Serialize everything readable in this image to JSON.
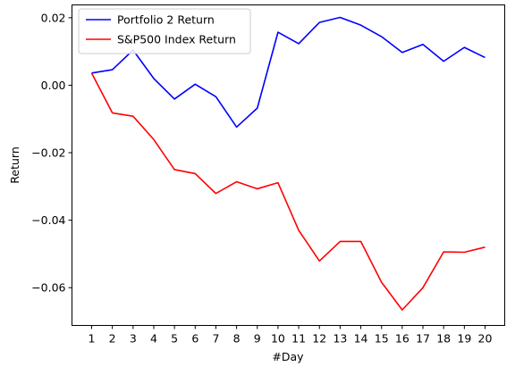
{
  "chart_data": {
    "type": "line",
    "xlabel": "#Day",
    "ylabel": "Return",
    "x": [
      1,
      2,
      3,
      4,
      5,
      6,
      7,
      8,
      9,
      10,
      11,
      12,
      13,
      14,
      15,
      16,
      17,
      18,
      19,
      20
    ],
    "xticks": [
      "1",
      "2",
      "3",
      "4",
      "5",
      "6",
      "7",
      "8",
      "9",
      "10",
      "11",
      "12",
      "13",
      "14",
      "15",
      "16",
      "17",
      "18",
      "19",
      "20"
    ],
    "yticks": [
      0.02,
      0.0,
      -0.02,
      -0.04,
      -0.06
    ],
    "ytick_labels": [
      "0.02",
      "0.00",
      "−0.02",
      "−0.04",
      "−0.06"
    ],
    "xlim": [
      0.05,
      20.95
    ],
    "ylim": [
      -0.0712,
      0.0238
    ],
    "grid": false,
    "legend_position": "top-left",
    "series": [
      {
        "name": "Portfolio 2 Return",
        "color": "#0000ff",
        "values": [
          0.0036,
          0.0046,
          0.0104,
          0.002,
          -0.0041,
          0.0003,
          -0.0034,
          -0.0124,
          -0.0068,
          0.0157,
          0.0123,
          0.0186,
          0.0201,
          0.0178,
          0.0144,
          0.0097,
          0.0121,
          0.0071,
          0.0112,
          0.0082
        ]
      },
      {
        "name": "S&P500 Index Return",
        "color": "#ff0000",
        "values": [
          0.0036,
          -0.0082,
          -0.0092,
          -0.0161,
          -0.025,
          -0.0262,
          -0.0321,
          -0.0286,
          -0.0307,
          -0.0289,
          -0.043,
          -0.0521,
          -0.0463,
          -0.0463,
          -0.0584,
          -0.0666,
          -0.06,
          -0.0494,
          -0.0495,
          -0.048
        ]
      }
    ]
  }
}
